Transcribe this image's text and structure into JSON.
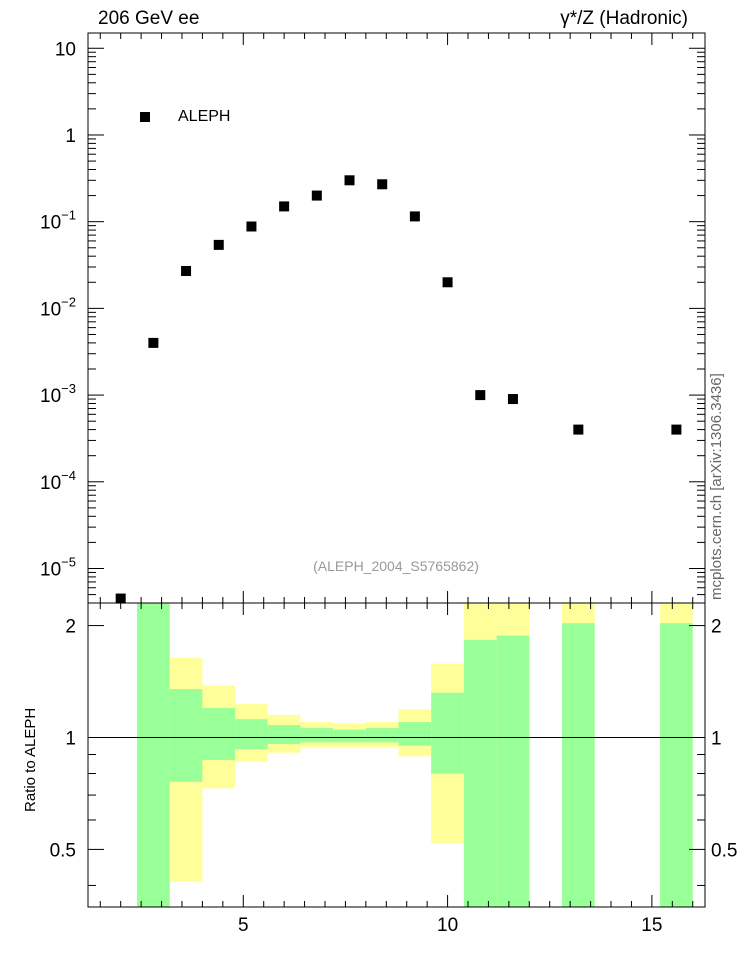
{
  "header": {
    "left_title": "206 GeV ee",
    "right_title": "γ*/Z (Hadronic)",
    "side_label": "mcplots.cern.ch [arXiv:1306.3436]",
    "analysis_id": "(ALEPH_2004_S5765862)",
    "legend_label": "ALEPH"
  },
  "colors": {
    "data_marker": "#000000",
    "band_inner": "#99ff99",
    "band_outer": "#ffff99",
    "reference_line": "#000000",
    "analysis_id_text": "#999999",
    "side_label_text": "#666666"
  },
  "chart_data": [
    {
      "type": "scatter",
      "panel": "main",
      "yscale": "log",
      "xlim": [
        1.2,
        16.3
      ],
      "ylim": [
        4e-06,
        15
      ],
      "y_ticks": [
        {
          "value": 10,
          "base": "10",
          "exp": ""
        },
        {
          "value": 1,
          "base": "1",
          "exp": ""
        },
        {
          "value": 0.1,
          "base": "10",
          "exp": "−1"
        },
        {
          "value": 0.01,
          "base": "10",
          "exp": "−2"
        },
        {
          "value": 0.001,
          "base": "10",
          "exp": "−3"
        },
        {
          "value": 0.0001,
          "base": "10",
          "exp": "−4"
        },
        {
          "value": 1e-05,
          "base": "10",
          "exp": "−5"
        }
      ],
      "legend": {
        "entries": [
          "ALEPH"
        ],
        "placement": "top-left"
      },
      "series": [
        {
          "name": "ALEPH",
          "x": [
            2.0,
            2.8,
            3.6,
            4.4,
            5.2,
            6.0,
            6.8,
            7.6,
            8.4,
            9.2,
            10.0,
            10.8,
            11.6,
            13.2,
            15.6
          ],
          "y": [
            4.5e-06,
            0.004,
            0.027,
            0.054,
            0.088,
            0.15,
            0.2,
            0.3,
            0.27,
            0.115,
            0.02,
            0.001,
            0.0009,
            0.0004,
            0.0004
          ]
        }
      ]
    },
    {
      "type": "bar",
      "panel": "ratio",
      "xlabel": "",
      "ylabel": "Ratio to ALEPH",
      "xlim": [
        1.2,
        16.3
      ],
      "ylim": [
        0.35,
        2.3
      ],
      "x_ticks": [
        5,
        10,
        15
      ],
      "y_ticks": [
        {
          "value": 0.5,
          "label": "0.5"
        },
        {
          "value": 1,
          "label": "1"
        },
        {
          "value": 2,
          "label": "2"
        }
      ],
      "reference": 1,
      "bins": [
        {
          "x0": 2.4,
          "x1": 3.2,
          "inner": [
            0.35,
            2.3
          ],
          "outer": [
            0.35,
            2.3
          ]
        },
        {
          "x0": 3.2,
          "x1": 4.0,
          "inner": [
            0.76,
            1.35
          ],
          "outer": [
            0.41,
            1.64
          ]
        },
        {
          "x0": 4.0,
          "x1": 4.8,
          "inner": [
            0.87,
            1.2
          ],
          "outer": [
            0.73,
            1.38
          ]
        },
        {
          "x0": 4.8,
          "x1": 5.6,
          "inner": [
            0.93,
            1.12
          ],
          "outer": [
            0.86,
            1.23
          ]
        },
        {
          "x0": 5.6,
          "x1": 6.4,
          "inner": [
            0.96,
            1.08
          ],
          "outer": [
            0.91,
            1.15
          ]
        },
        {
          "x0": 6.4,
          "x1": 7.2,
          "inner": [
            0.97,
            1.06
          ],
          "outer": [
            0.94,
            1.1
          ]
        },
        {
          "x0": 7.2,
          "x1": 8.0,
          "inner": [
            0.97,
            1.05
          ],
          "outer": [
            0.94,
            1.09
          ]
        },
        {
          "x0": 8.0,
          "x1": 8.8,
          "inner": [
            0.97,
            1.06
          ],
          "outer": [
            0.94,
            1.1
          ]
        },
        {
          "x0": 8.8,
          "x1": 9.6,
          "inner": [
            0.95,
            1.1
          ],
          "outer": [
            0.89,
            1.19
          ]
        },
        {
          "x0": 9.6,
          "x1": 10.4,
          "inner": [
            0.8,
            1.32
          ],
          "outer": [
            0.52,
            1.58
          ]
        },
        {
          "x0": 10.4,
          "x1": 11.2,
          "inner": [
            0.35,
            1.83
          ],
          "outer": [
            0.35,
            2.3
          ]
        },
        {
          "x0": 11.2,
          "x1": 12.0,
          "inner": [
            0.35,
            1.88
          ],
          "outer": [
            0.35,
            2.3
          ]
        },
        {
          "x0": 12.8,
          "x1": 13.6,
          "inner": [
            0.35,
            2.03
          ],
          "outer": [
            0.35,
            2.3
          ]
        },
        {
          "x0": 15.2,
          "x1": 16.0,
          "inner": [
            0.35,
            2.03
          ],
          "outer": [
            0.35,
            2.3
          ]
        }
      ]
    }
  ]
}
